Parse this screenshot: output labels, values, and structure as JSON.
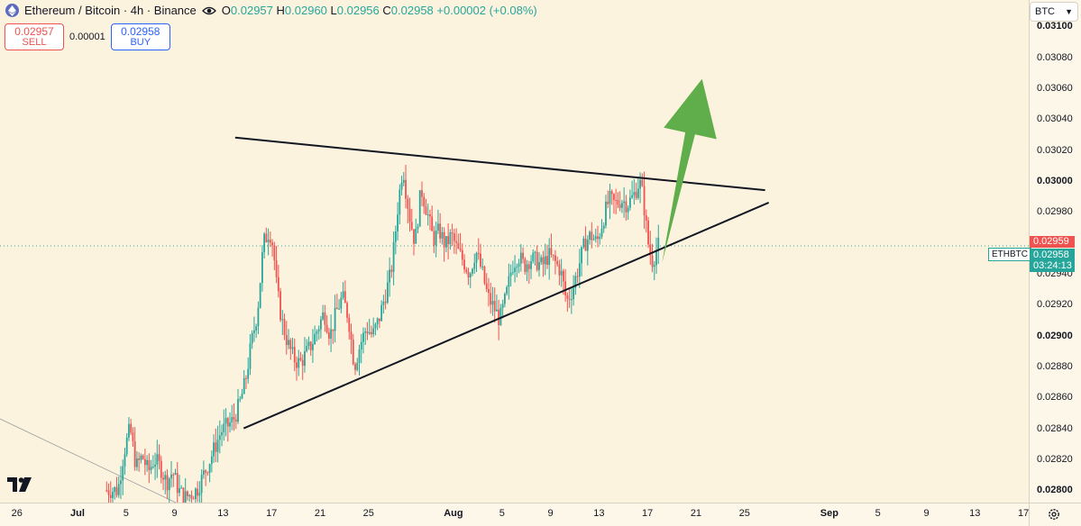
{
  "header": {
    "symbol_title": "Ethereum / Bitcoin · 4h · Binance",
    "ohlc": [
      {
        "key": "O",
        "value": "0.02957"
      },
      {
        "key": "H",
        "value": "0.02960"
      },
      {
        "key": "L",
        "value": "0.02956"
      },
      {
        "key": "C",
        "value": "0.02958"
      }
    ],
    "change": "+0.00002 (+0.08%)",
    "icons": {
      "symbol": "ethereum-logo-icon",
      "visibility": "eye-icon"
    }
  },
  "trade": {
    "sell_price": "0.02957",
    "sell_label": "SELL",
    "spread": "0.00001",
    "buy_price": "0.02958",
    "buy_label": "BUY"
  },
  "currency_selector": "BTC",
  "price_tags": {
    "pair": "ETHBTC",
    "ask": "0.02959",
    "last": "0.02958",
    "countdown": "03:24:13"
  },
  "colors": {
    "up": "#26a69a",
    "down": "#ef5350",
    "background": "#fcf3df",
    "arrow": "#5fae4b",
    "trendline": "#131722"
  },
  "chart_data": {
    "type": "candlestick",
    "title": "Ethereum / Bitcoin · 4h · Binance",
    "y_ticks": [
      "0.03100",
      "0.03080",
      "0.03060",
      "0.03040",
      "0.03020",
      "0.03000",
      "0.02980",
      "0.02960",
      "0.02940",
      "0.02920",
      "0.02900",
      "0.02880",
      "0.02860",
      "0.02840",
      "0.02820",
      "0.02800"
    ],
    "y_ticks_bold": [
      "0.03100",
      "0.03000",
      "0.02900",
      "0.02800"
    ],
    "ylim": [
      0.02792,
      0.03117
    ],
    "x_ticks": [
      "26",
      "Jul",
      "5",
      "9",
      "13",
      "17",
      "21",
      "25",
      "Aug",
      "5",
      "9",
      "13",
      "17",
      "21",
      "25",
      "Sep",
      "5",
      "9",
      "13",
      "17"
    ],
    "x_ticks_bold": [
      "Jul",
      "Aug",
      "Sep"
    ],
    "x_tick_days": [
      -5,
      0,
      4,
      8,
      12,
      16,
      20,
      24,
      31,
      35,
      39,
      43,
      47,
      51,
      55,
      62,
      66,
      70,
      74,
      78
    ],
    "x_axis_epoch": "Jul 1",
    "price_anchors": [
      [
        3.5,
        0.028
      ],
      [
        4.0,
        0.02825
      ],
      [
        4.5,
        0.0284
      ],
      [
        5.0,
        0.02815
      ],
      [
        5.5,
        0.02822
      ],
      [
        6.0,
        0.02812
      ],
      [
        6.5,
        0.0282
      ],
      [
        7.0,
        0.02815
      ],
      [
        7.5,
        0.02805
      ],
      [
        8.0,
        0.02812
      ],
      [
        8.5,
        0.028
      ],
      [
        9.0,
        0.02795
      ],
      [
        10.0,
        0.028
      ],
      [
        11.0,
        0.02818
      ],
      [
        12.0,
        0.02838
      ],
      [
        13.0,
        0.02845
      ],
      [
        13.5,
        0.02855
      ],
      [
        14.0,
        0.0287
      ],
      [
        14.5,
        0.02895
      ],
      [
        15.0,
        0.02915
      ],
      [
        15.5,
        0.0296
      ],
      [
        16.0,
        0.02968
      ],
      [
        16.3,
        0.02958
      ],
      [
        16.6,
        0.0293
      ],
      [
        17.0,
        0.0291
      ],
      [
        17.5,
        0.02895
      ],
      [
        18.0,
        0.02885
      ],
      [
        18.5,
        0.02882
      ],
      [
        19.0,
        0.02888
      ],
      [
        19.5,
        0.02895
      ],
      [
        20.0,
        0.02905
      ],
      [
        20.5,
        0.02915
      ],
      [
        21.0,
        0.029
      ],
      [
        21.5,
        0.02915
      ],
      [
        22.0,
        0.02925
      ],
      [
        22.5,
        0.02912
      ],
      [
        23.0,
        0.0288
      ],
      [
        23.5,
        0.02895
      ],
      [
        24.0,
        0.02905
      ],
      [
        24.5,
        0.029
      ],
      [
        25.0,
        0.0291
      ],
      [
        25.5,
        0.02925
      ],
      [
        26.0,
        0.0294
      ],
      [
        26.3,
        0.0296
      ],
      [
        26.6,
        0.02985
      ],
      [
        27.0,
        0.0301
      ],
      [
        27.3,
        0.0299
      ],
      [
        27.6,
        0.02975
      ],
      [
        28.0,
        0.0296
      ],
      [
        28.5,
        0.02995
      ],
      [
        29.0,
        0.0298
      ],
      [
        29.5,
        0.02962
      ],
      [
        30.0,
        0.02968
      ],
      [
        30.5,
        0.02958
      ],
      [
        31.0,
        0.02965
      ],
      [
        31.5,
        0.02955
      ],
      [
        32.0,
        0.02948
      ],
      [
        32.5,
        0.0294
      ],
      [
        33.0,
        0.02955
      ],
      [
        33.5,
        0.02942
      ],
      [
        34.0,
        0.02925
      ],
      [
        34.5,
        0.02918
      ],
      [
        35.0,
        0.0291
      ],
      [
        35.5,
        0.02925
      ],
      [
        36.0,
        0.02945
      ],
      [
        36.5,
        0.02952
      ],
      [
        37.0,
        0.02945
      ],
      [
        37.5,
        0.0295
      ],
      [
        38.0,
        0.02948
      ],
      [
        38.5,
        0.02945
      ],
      [
        39.0,
        0.02952
      ],
      [
        39.5,
        0.02948
      ],
      [
        40.0,
        0.02942
      ],
      [
        40.5,
        0.02922
      ],
      [
        41.0,
        0.0293
      ],
      [
        41.5,
        0.02945
      ],
      [
        42.0,
        0.0296
      ],
      [
        42.5,
        0.02965
      ],
      [
        43.0,
        0.0296
      ],
      [
        43.5,
        0.02975
      ],
      [
        44.0,
        0.02988
      ],
      [
        44.5,
        0.02985
      ],
      [
        45.0,
        0.02988
      ],
      [
        45.5,
        0.02985
      ],
      [
        46.0,
        0.0299
      ],
      [
        46.5,
        0.03
      ],
      [
        46.8,
        0.0299
      ],
      [
        47.0,
        0.02975
      ],
      [
        47.3,
        0.02955
      ],
      [
        47.6,
        0.02948
      ],
      [
        48.0,
        0.02958
      ]
    ],
    "trendlines": [
      {
        "name": "resistance",
        "points": [
          [
            13.0,
            0.03028
          ],
          [
            56.7,
            0.02994
          ]
        ]
      },
      {
        "name": "support",
        "points": [
          [
            13.7,
            0.0284
          ],
          [
            57.0,
            0.02986
          ]
        ]
      }
    ],
    "projection_arrow": {
      "from": [
        48.2,
        0.02947
      ],
      "to": [
        51.5,
        0.03066
      ]
    },
    "last_price": 0.02958,
    "ask_price": 0.02959,
    "grid": false
  }
}
